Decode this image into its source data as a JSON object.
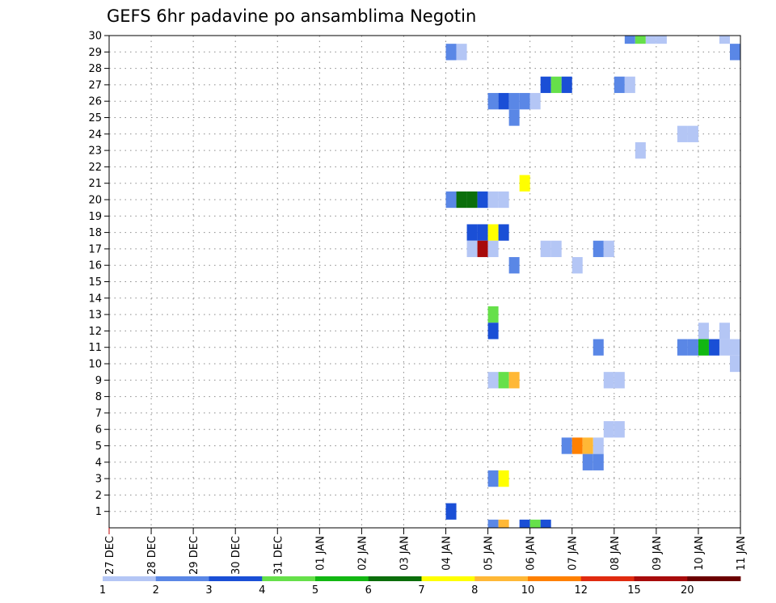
{
  "chart_data": {
    "type": "heatmap",
    "title": "GEFS 6hr padavine po ansamblima Negotin",
    "xlabel": "",
    "ylabel": "",
    "x_ticks": [
      "27 DEC",
      "28 DEC",
      "29 DEC",
      "30 DEC",
      "31 DEC",
      "01 JAN",
      "02 JAN",
      "03 JAN",
      "04 JAN",
      "05 JAN",
      "06 JAN",
      "07 JAN",
      "08 JAN",
      "09 JAN",
      "10 JAN",
      "11 JAN"
    ],
    "x_range_days": [
      0,
      15
    ],
    "y_ticks": [
      1,
      2,
      3,
      4,
      5,
      6,
      7,
      8,
      9,
      10,
      11,
      12,
      13,
      14,
      15,
      16,
      17,
      18,
      19,
      20,
      21,
      22,
      23,
      24,
      25,
      26,
      27,
      28,
      29,
      30
    ],
    "y_range": [
      0,
      30
    ],
    "grid": true,
    "colorbar": {
      "labels": [
        "1",
        "2",
        "3",
        "4",
        "5",
        "6",
        "7",
        "8",
        "10",
        "12",
        "15",
        "20"
      ],
      "bounds": [
        1,
        2,
        3,
        4,
        5,
        6,
        7,
        8,
        10,
        12,
        15,
        20
      ],
      "colors": [
        "#b4c6f5",
        "#5a87e6",
        "#1a4fd6",
        "#66e04a",
        "#12b712",
        "#0b6e0b",
        "#ffff00",
        "#ffb836",
        "#ff8000",
        "#e02b10",
        "#a80b0b",
        "#6b0000"
      ]
    },
    "cells": [
      {
        "member": 30,
        "day": 12.25,
        "level": 2
      },
      {
        "member": 30,
        "day": 12.5,
        "level": 4
      },
      {
        "member": 30,
        "day": 12.75,
        "level": 1
      },
      {
        "member": 30,
        "day": 13.0,
        "level": 1
      },
      {
        "member": 30,
        "day": 14.5,
        "level": 1
      },
      {
        "member": 29,
        "day": 8.0,
        "level": 2
      },
      {
        "member": 29,
        "day": 8.25,
        "level": 1
      },
      {
        "member": 29,
        "day": 14.75,
        "level": 2
      },
      {
        "member": 27,
        "day": 10.25,
        "level": 3
      },
      {
        "member": 27,
        "day": 10.5,
        "level": 4
      },
      {
        "member": 27,
        "day": 10.75,
        "level": 3
      },
      {
        "member": 27,
        "day": 12.0,
        "level": 2
      },
      {
        "member": 27,
        "day": 12.25,
        "level": 1
      },
      {
        "member": 26,
        "day": 9.0,
        "level": 2
      },
      {
        "member": 26,
        "day": 9.25,
        "level": 3
      },
      {
        "member": 26,
        "day": 9.5,
        "level": 2
      },
      {
        "member": 26,
        "day": 9.75,
        "level": 2
      },
      {
        "member": 26,
        "day": 10.0,
        "level": 1
      },
      {
        "member": 25,
        "day": 9.5,
        "level": 2
      },
      {
        "member": 24,
        "day": 13.5,
        "level": 1
      },
      {
        "member": 24,
        "day": 13.75,
        "level": 1
      },
      {
        "member": 23,
        "day": 12.5,
        "level": 1
      },
      {
        "member": 21,
        "day": 9.75,
        "level": 7
      },
      {
        "member": 20,
        "day": 8.0,
        "level": 2
      },
      {
        "member": 20,
        "day": 8.25,
        "level": 6
      },
      {
        "member": 20,
        "day": 8.5,
        "level": 6
      },
      {
        "member": 20,
        "day": 8.75,
        "level": 3
      },
      {
        "member": 20,
        "day": 9.0,
        "level": 1
      },
      {
        "member": 20,
        "day": 9.25,
        "level": 1
      },
      {
        "member": 18,
        "day": 8.5,
        "level": 3
      },
      {
        "member": 18,
        "day": 8.75,
        "level": 3
      },
      {
        "member": 18,
        "day": 9.0,
        "level": 7
      },
      {
        "member": 18,
        "day": 9.25,
        "level": 3
      },
      {
        "member": 17,
        "day": 8.5,
        "level": 1
      },
      {
        "member": 17,
        "day": 8.75,
        "level": 11
      },
      {
        "member": 17,
        "day": 9.0,
        "level": 1
      },
      {
        "member": 17,
        "day": 10.25,
        "level": 1
      },
      {
        "member": 17,
        "day": 10.5,
        "level": 1
      },
      {
        "member": 17,
        "day": 11.5,
        "level": 2
      },
      {
        "member": 17,
        "day": 11.75,
        "level": 1
      },
      {
        "member": 16,
        "day": 9.5,
        "level": 2
      },
      {
        "member": 16,
        "day": 11.0,
        "level": 1
      },
      {
        "member": 13,
        "day": 9.0,
        "level": 4
      },
      {
        "member": 12,
        "day": 9.0,
        "level": 3
      },
      {
        "member": 12,
        "day": 14.0,
        "level": 1
      },
      {
        "member": 12,
        "day": 14.5,
        "level": 1
      },
      {
        "member": 11,
        "day": 11.5,
        "level": 2
      },
      {
        "member": 11,
        "day": 13.5,
        "level": 2
      },
      {
        "member": 11,
        "day": 13.75,
        "level": 2
      },
      {
        "member": 11,
        "day": 14.0,
        "level": 5
      },
      {
        "member": 11,
        "day": 14.25,
        "level": 3
      },
      {
        "member": 11,
        "day": 14.5,
        "level": 1
      },
      {
        "member": 11,
        "day": 14.75,
        "level": 1
      },
      {
        "member": 10,
        "day": 14.75,
        "level": 1
      },
      {
        "member": 9,
        "day": 9.0,
        "level": 1
      },
      {
        "member": 9,
        "day": 9.25,
        "level": 4
      },
      {
        "member": 9,
        "day": 9.5,
        "level": 8
      },
      {
        "member": 9,
        "day": 11.75,
        "level": 1
      },
      {
        "member": 9,
        "day": 12.0,
        "level": 1
      },
      {
        "member": 6,
        "day": 11.75,
        "level": 1
      },
      {
        "member": 6,
        "day": 12.0,
        "level": 1
      },
      {
        "member": 5,
        "day": 10.75,
        "level": 2
      },
      {
        "member": 5,
        "day": 11.0,
        "level": 9
      },
      {
        "member": 5,
        "day": 11.25,
        "level": 8
      },
      {
        "member": 5,
        "day": 11.5,
        "level": 1
      },
      {
        "member": 4,
        "day": 11.25,
        "level": 2
      },
      {
        "member": 4,
        "day": 11.5,
        "level": 2
      },
      {
        "member": 3,
        "day": 9.0,
        "level": 2
      },
      {
        "member": 3,
        "day": 9.25,
        "level": 7
      },
      {
        "member": 1,
        "day": 8.0,
        "level": 3
      },
      {
        "member": 0,
        "day": 9.0,
        "level": 2
      },
      {
        "member": 0,
        "day": 9.25,
        "level": 8
      },
      {
        "member": 0,
        "day": 9.75,
        "level": 3
      },
      {
        "member": 0,
        "day": 10.0,
        "level": 4
      },
      {
        "member": 0,
        "day": 10.25,
        "level": 3
      }
    ]
  }
}
